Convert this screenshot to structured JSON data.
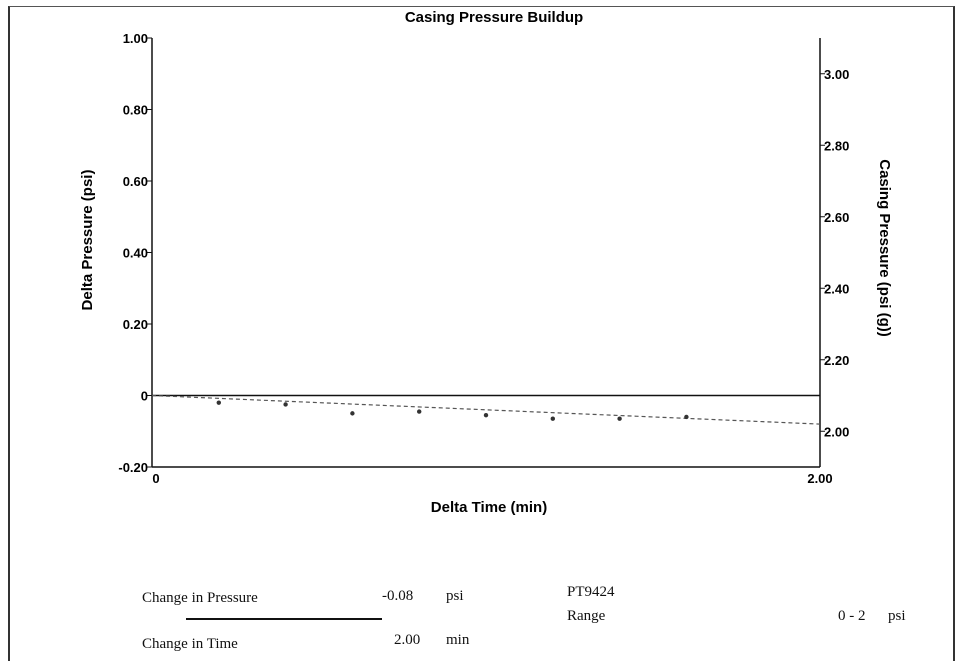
{
  "chart_data": {
    "type": "scatter",
    "title": "Casing Pressure Buildup",
    "xlabel": "Delta Time (min)",
    "ylabel": "Delta Pressure (psi)",
    "y2label": "Casing Pressure (psi (g))",
    "xlim": [
      0,
      2.0
    ],
    "ylim": [
      -0.2,
      1.0
    ],
    "y2lim": [
      1.9,
      3.1
    ],
    "x_tick_labels": [
      "0",
      "2.00"
    ],
    "y_tick_labels": [
      "1.00",
      "0.80",
      "0.60",
      "0.40",
      "0.20",
      "0",
      "-0.20"
    ],
    "y2_tick_labels": [
      "3.00",
      "2.80",
      "2.60",
      "2.40",
      "2.20",
      "2.00"
    ],
    "points": [
      {
        "x": 0.2,
        "y": -0.02
      },
      {
        "x": 0.4,
        "y": -0.025
      },
      {
        "x": 0.6,
        "y": -0.05
      },
      {
        "x": 0.8,
        "y": -0.045
      },
      {
        "x": 1.0,
        "y": -0.055
      },
      {
        "x": 1.2,
        "y": -0.065
      },
      {
        "x": 1.4,
        "y": -0.065
      },
      {
        "x": 1.6,
        "y": -0.06
      }
    ],
    "trend_line": {
      "x": [
        0,
        2.0
      ],
      "y": [
        0,
        -0.08
      ],
      "style": "dashed"
    },
    "baseline": {
      "y": 0
    },
    "grid": false,
    "colors": {
      "axis": "#111111",
      "points": "#333333",
      "trend": "#555555"
    }
  },
  "summary": {
    "change_pressure_label": "Change in Pressure",
    "change_pressure_value": "-0.08",
    "change_pressure_unit": "psi",
    "change_time_label": "Change in Time",
    "change_time_value": "2.00",
    "change_time_unit": "min",
    "gauge_id": "PT9424",
    "range_label": "Range",
    "range_value": "0 - 2",
    "range_unit": "psi"
  }
}
